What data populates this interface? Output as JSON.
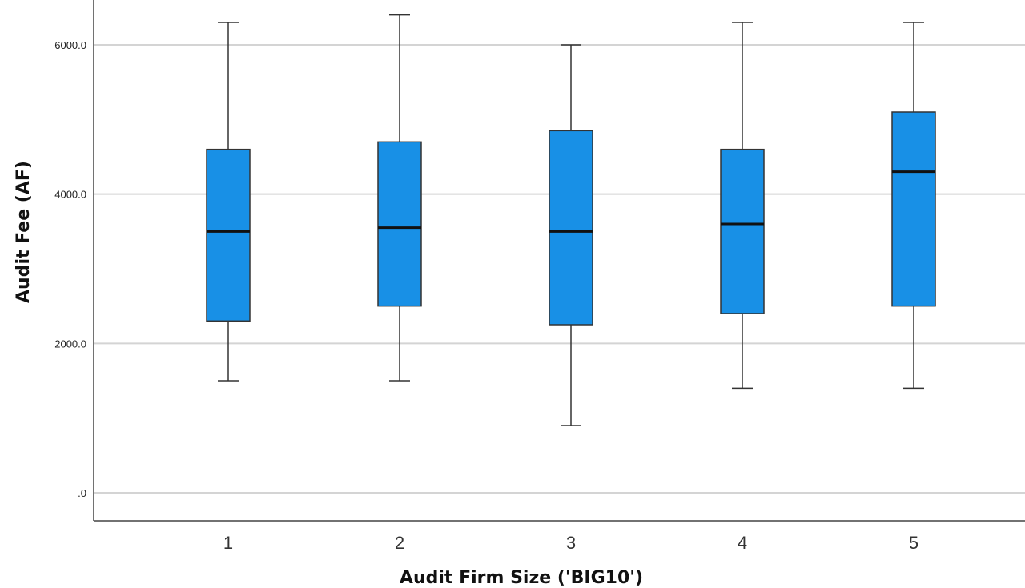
{
  "chart_data": {
    "type": "boxplot",
    "title": "",
    "xlabel": "Audit Firm Size ('BIG10')",
    "ylabel": "Audit Fee (AF)",
    "categories": [
      "1",
      "2",
      "3",
      "4",
      "5"
    ],
    "ylim": [
      -400,
      6600
    ],
    "yticks": [
      0,
      2000,
      4000,
      6000
    ],
    "ytick_labels": [
      ".0",
      "2000.0",
      "4000.0",
      "6000.0"
    ],
    "grid": true,
    "box_color": "#1890e6",
    "boxes": [
      {
        "category": "1",
        "min": 1500,
        "q1": 2300,
        "median": 3500,
        "q3": 4600,
        "max": 6300
      },
      {
        "category": "2",
        "min": 1500,
        "q1": 2500,
        "median": 3550,
        "q3": 4700,
        "max": 6400
      },
      {
        "category": "3",
        "min": 900,
        "q1": 2250,
        "median": 3500,
        "q3": 4850,
        "max": 6000
      },
      {
        "category": "4",
        "min": 1400,
        "q1": 2400,
        "median": 3600,
        "q3": 4600,
        "max": 6300
      },
      {
        "category": "5",
        "min": 1400,
        "q1": 2500,
        "median": 4300,
        "q3": 5100,
        "max": 6300
      }
    ]
  }
}
